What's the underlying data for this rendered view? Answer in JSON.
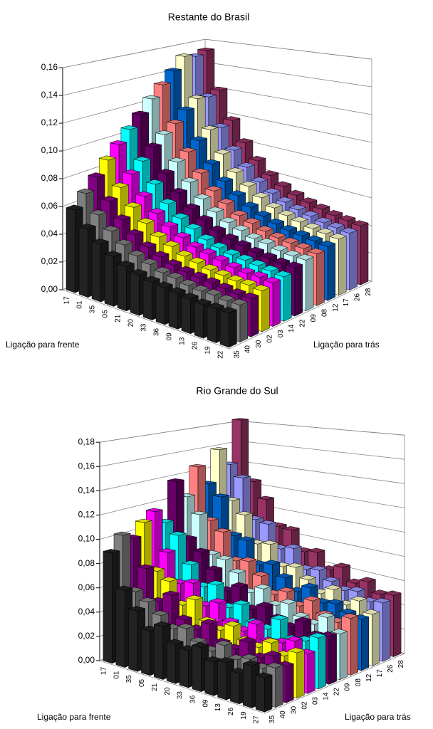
{
  "chart_data": [
    {
      "type": "bar3d",
      "title": "Restante do Brasil",
      "xlabel": "Ligação para frente",
      "depth_label": "Ligação para trás",
      "categories": [
        "17",
        "01",
        "35",
        "05",
        "21",
        "20",
        "33",
        "36",
        "09",
        "13",
        "26",
        "19",
        "22"
      ],
      "ylim": [
        0,
        0.16
      ],
      "yticks": [
        {
          "value": 0,
          "label": "0,00"
        },
        {
          "value": 0.02,
          "label": "0,02"
        },
        {
          "value": 0.04,
          "label": "0,04"
        },
        {
          "value": 0.06,
          "label": "0,06"
        },
        {
          "value": 0.08,
          "label": "0,08"
        },
        {
          "value": 0.1,
          "label": "0,10"
        },
        {
          "value": 0.12,
          "label": "0,12"
        },
        {
          "value": 0.14,
          "label": "0,14"
        },
        {
          "value": 0.16,
          "label": "0,16"
        }
      ],
      "grid": true,
      "series": [
        {
          "name": "35",
          "color": "#222222",
          "values": [
            0.059,
            0.048,
            0.04,
            0.034,
            0.03,
            0.027,
            0.025,
            0.024,
            0.023,
            0.022,
            0.021,
            0.021,
            0.021
          ]
        },
        {
          "name": "40",
          "color": "#808080",
          "values": [
            0.068,
            0.055,
            0.046,
            0.039,
            0.034,
            0.031,
            0.028,
            0.027,
            0.025,
            0.024,
            0.024,
            0.023,
            0.023
          ]
        },
        {
          "name": "30",
          "color": "#800080",
          "values": [
            0.077,
            0.062,
            0.051,
            0.043,
            0.037,
            0.033,
            0.03,
            0.028,
            0.027,
            0.026,
            0.025,
            0.024,
            0.024
          ]
        },
        {
          "name": "02",
          "color": "#FFFF00",
          "values": [
            0.087,
            0.069,
            0.057,
            0.048,
            0.041,
            0.037,
            0.033,
            0.031,
            0.029,
            0.028,
            0.027,
            0.027,
            0.026
          ]
        },
        {
          "name": "03",
          "color": "#FF00FF",
          "values": [
            0.096,
            0.076,
            0.062,
            0.052,
            0.045,
            0.04,
            0.036,
            0.034,
            0.032,
            0.03,
            0.029,
            0.029,
            0.028
          ]
        },
        {
          "name": "14",
          "color": "#00FFFF",
          "values": [
            0.105,
            0.083,
            0.068,
            0.056,
            0.048,
            0.043,
            0.038,
            0.035,
            0.033,
            0.032,
            0.031,
            0.03,
            0.029
          ]
        },
        {
          "name": "22",
          "color": "#660066",
          "values": [
            0.114,
            0.091,
            0.073,
            0.061,
            0.052,
            0.046,
            0.041,
            0.038,
            0.036,
            0.034,
            0.033,
            0.032,
            0.032
          ]
        },
        {
          "name": "09",
          "color": "#CCFFFF",
          "values": [
            0.124,
            0.098,
            0.079,
            0.066,
            0.056,
            0.049,
            0.044,
            0.041,
            0.038,
            0.037,
            0.035,
            0.034,
            0.034
          ]
        },
        {
          "name": "08",
          "color": "#FF8080",
          "values": [
            0.133,
            0.104,
            0.084,
            0.07,
            0.059,
            0.052,
            0.046,
            0.043,
            0.04,
            0.038,
            0.037,
            0.036,
            0.035
          ]
        },
        {
          "name": "12",
          "color": "#0066CC",
          "values": [
            0.142,
            0.112,
            0.09,
            0.074,
            0.063,
            0.055,
            0.049,
            0.045,
            0.042,
            0.04,
            0.039,
            0.038,
            0.037
          ]
        },
        {
          "name": "17",
          "color": "#FFFFCC",
          "values": [
            0.152,
            0.119,
            0.096,
            0.079,
            0.067,
            0.059,
            0.053,
            0.048,
            0.045,
            0.043,
            0.041,
            0.04,
            0.039
          ]
        },
        {
          "name": "26",
          "color": "#9999FF",
          "values": [
            0.15,
            0.118,
            0.095,
            0.079,
            0.068,
            0.059,
            0.053,
            0.049,
            0.046,
            0.044,
            0.042,
            0.041,
            0.04
          ]
        },
        {
          "name": "28",
          "color": "#993366",
          "values": [
            0.153,
            0.121,
            0.098,
            0.082,
            0.07,
            0.061,
            0.055,
            0.051,
            0.048,
            0.046,
            0.044,
            0.043,
            0.042
          ]
        }
      ]
    },
    {
      "type": "bar3d",
      "title": "Rio Grande do Sul",
      "xlabel": "Ligação para frente",
      "depth_label": "Ligação para trás",
      "categories": [
        "17",
        "01",
        "35",
        "05",
        "21",
        "20",
        "33",
        "36",
        "09",
        "13",
        "26",
        "19",
        "27"
      ],
      "ylim": [
        0,
        0.18
      ],
      "yticks": [
        {
          "value": 0,
          "label": "0,00"
        },
        {
          "value": 0.02,
          "label": "0,02"
        },
        {
          "value": 0.04,
          "label": "0,04"
        },
        {
          "value": 0.06,
          "label": "0,06"
        },
        {
          "value": 0.08,
          "label": "0,08"
        },
        {
          "value": 0.1,
          "label": "0,10"
        },
        {
          "value": 0.12,
          "label": "0,12"
        },
        {
          "value": 0.14,
          "label": "0,14"
        },
        {
          "value": 0.16,
          "label": "0,16"
        },
        {
          "value": 0.18,
          "label": "0,18"
        }
      ],
      "grid": true,
      "series": [
        {
          "name": "35",
          "color": "#222222",
          "values": [
            0.09,
            0.062,
            0.048,
            0.035,
            0.041,
            0.03,
            0.028,
            0.033,
            0.025,
            0.027,
            0.022,
            0.03,
            0.024
          ]
        },
        {
          "name": "40",
          "color": "#808080",
          "values": [
            0.102,
            0.058,
            0.052,
            0.044,
            0.036,
            0.039,
            0.031,
            0.027,
            0.034,
            0.026,
            0.029,
            0.025,
            0.028
          ]
        },
        {
          "name": "30",
          "color": "#800080",
          "values": [
            0.097,
            0.074,
            0.049,
            0.057,
            0.04,
            0.035,
            0.042,
            0.03,
            0.028,
            0.036,
            0.027,
            0.031,
            0.026
          ]
        },
        {
          "name": "02",
          "color": "#FFFF00",
          "values": [
            0.108,
            0.069,
            0.063,
            0.046,
            0.053,
            0.038,
            0.034,
            0.04,
            0.031,
            0.029,
            0.035,
            0.028,
            0.033
          ]
        },
        {
          "name": "03",
          "color": "#FF00FF",
          "values": [
            0.115,
            0.082,
            0.058,
            0.061,
            0.045,
            0.05,
            0.037,
            0.033,
            0.041,
            0.03,
            0.032,
            0.036,
            0.029
          ]
        },
        {
          "name": "14",
          "color": "#00FFFF",
          "values": [
            0.103,
            0.094,
            0.071,
            0.055,
            0.059,
            0.043,
            0.048,
            0.036,
            0.034,
            0.044,
            0.031,
            0.033,
            0.038
          ]
        },
        {
          "name": "22",
          "color": "#660066",
          "values": [
            0.137,
            0.088,
            0.079,
            0.066,
            0.051,
            0.057,
            0.041,
            0.046,
            0.039,
            0.035,
            0.042,
            0.034,
            0.036
          ]
        },
        {
          "name": "09",
          "color": "#CCFFFF",
          "values": [
            0.121,
            0.107,
            0.074,
            0.072,
            0.063,
            0.049,
            0.055,
            0.044,
            0.048,
            0.04,
            0.037,
            0.045,
            0.035
          ]
        },
        {
          "name": "08",
          "color": "#FF8080",
          "values": [
            0.146,
            0.099,
            0.091,
            0.068,
            0.07,
            0.06,
            0.047,
            0.052,
            0.043,
            0.05,
            0.041,
            0.038,
            0.044
          ]
        },
        {
          "name": "12",
          "color": "#0066CC",
          "values": [
            0.128,
            0.118,
            0.085,
            0.083,
            0.064,
            0.067,
            0.058,
            0.049,
            0.055,
            0.045,
            0.047,
            0.042,
            0.04
          ]
        },
        {
          "name": "17",
          "color": "#FFFFCC",
          "values": [
            0.158,
            0.112,
            0.101,
            0.077,
            0.079,
            0.062,
            0.064,
            0.056,
            0.047,
            0.053,
            0.043,
            0.049,
            0.041
          ]
        },
        {
          "name": "26",
          "color": "#9999FF",
          "values": [
            0.142,
            0.131,
            0.094,
            0.092,
            0.072,
            0.075,
            0.059,
            0.061,
            0.054,
            0.049,
            0.051,
            0.045,
            0.047
          ]
        },
        {
          "name": "28",
          "color": "#993366",
          "values": [
            0.183,
            0.125,
            0.11,
            0.087,
            0.086,
            0.069,
            0.071,
            0.058,
            0.063,
            0.052,
            0.056,
            0.048,
            0.05
          ]
        }
      ]
    }
  ]
}
